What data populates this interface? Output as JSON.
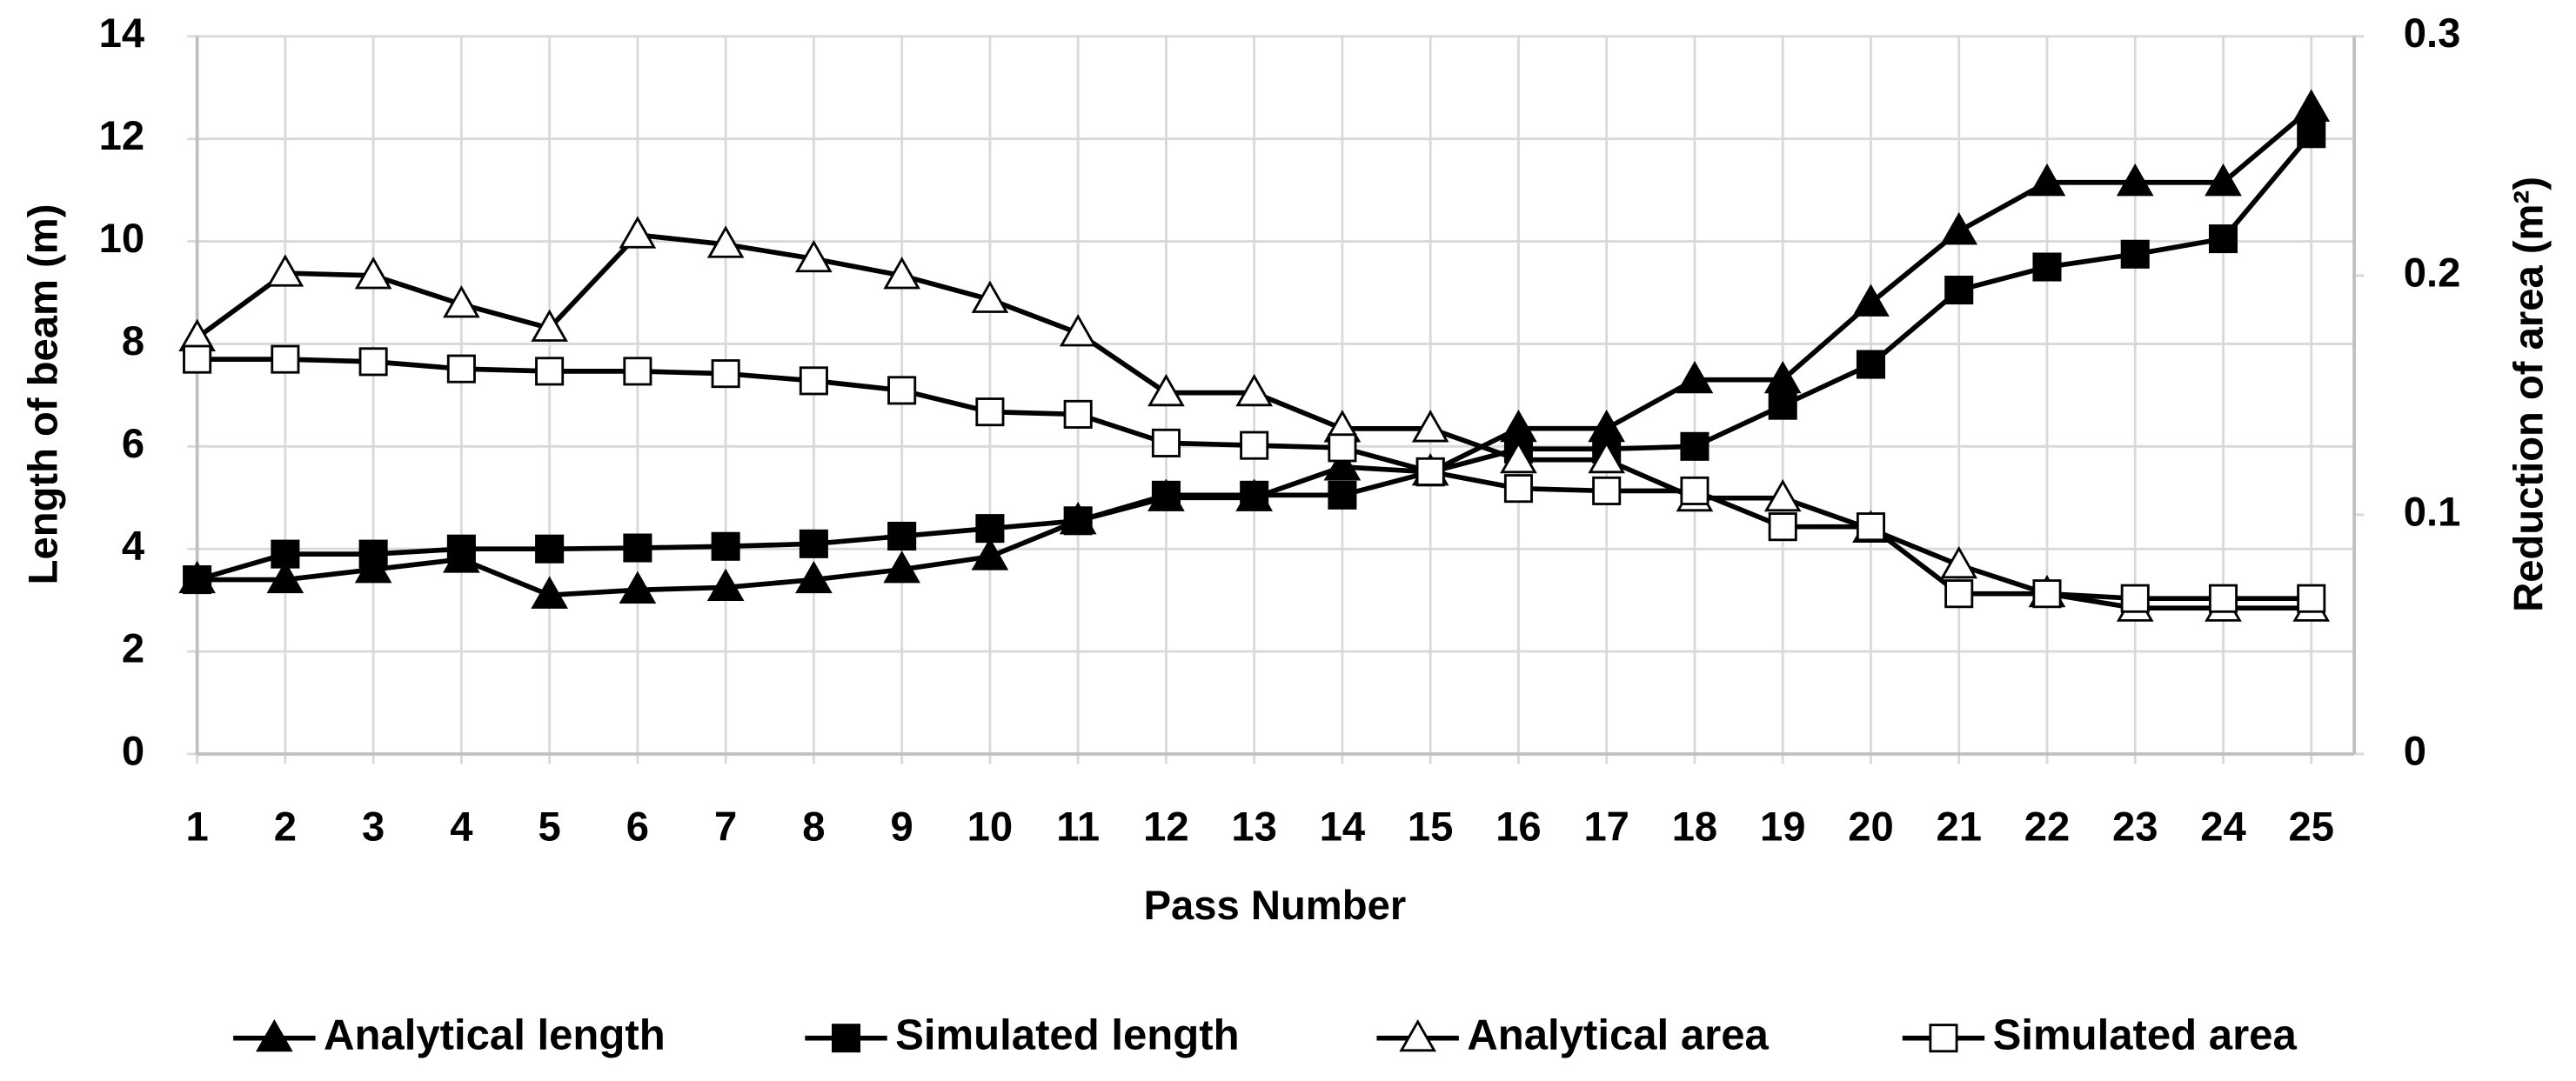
{
  "chart_data": {
    "type": "line",
    "x_label": "Pass Number",
    "y_label": "Length of beam (m)",
    "y2_label": "Reduction of area (m²)",
    "categories": [
      "1",
      "2",
      "3",
      "4",
      "5",
      "6",
      "7",
      "8",
      "9",
      "10",
      "11",
      "12",
      "13",
      "14",
      "15",
      "16",
      "17",
      "18",
      "19",
      "20",
      "21",
      "22",
      "23",
      "24",
      "25"
    ],
    "ylim": [
      0,
      14
    ],
    "yticks": [
      0,
      2,
      4,
      6,
      8,
      10,
      12,
      14
    ],
    "y2lim": [
      0,
      0.3
    ],
    "y2ticks": [
      0,
      0.1,
      0.2,
      0.3
    ],
    "grid": true,
    "legend": "bottom",
    "series": [
      {
        "name": "Analytical length",
        "color": "#000000",
        "marker": "triangle",
        "marker_fill": "#000000",
        "values": [
          3.4,
          3.4,
          3.6,
          3.8,
          3.1,
          3.2,
          3.25,
          3.4,
          3.6,
          3.85,
          4.55,
          5.0,
          5.0,
          5.6,
          5.5,
          6.35,
          6.35,
          7.3,
          7.3,
          8.8,
          10.2,
          11.15,
          11.15,
          11.15,
          12.6
        ]
      },
      {
        "name": "Simulated length",
        "color": "#000000",
        "marker": "square",
        "marker_fill": "#000000",
        "values": [
          3.4,
          3.9,
          3.9,
          4.0,
          4.0,
          4.02,
          4.05,
          4.1,
          4.25,
          4.4,
          4.55,
          5.05,
          5.05,
          5.05,
          5.5,
          5.95,
          5.95,
          6.0,
          6.8,
          7.6,
          9.05,
          9.5,
          9.75,
          10.05,
          12.1
        ]
      },
      {
        "name": "Analytical area",
        "color": "#000000",
        "marker": "triangle",
        "marker_fill": "#ffffff",
        "axis": "y2",
        "values": [
          0.174,
          0.201,
          0.2,
          0.188,
          0.178,
          0.217,
          0.213,
          0.207,
          0.2,
          0.19,
          0.176,
          0.151,
          0.151,
          0.136,
          0.136,
          0.123,
          0.123,
          0.107,
          0.107,
          0.094,
          0.079,
          0.067,
          0.061,
          0.061,
          0.061
        ]
      },
      {
        "name": "Simulated area",
        "color": "#000000",
        "marker": "square",
        "marker_fill": "#ffffff",
        "axis": "y2",
        "values": [
          0.165,
          0.165,
          0.164,
          0.161,
          0.16,
          0.16,
          0.159,
          0.156,
          0.152,
          0.143,
          0.142,
          0.13,
          0.129,
          0.128,
          0.118,
          0.111,
          0.11,
          0.11,
          0.095,
          0.095,
          0.067,
          0.067,
          0.065,
          0.065,
          0.065
        ]
      }
    ]
  }
}
